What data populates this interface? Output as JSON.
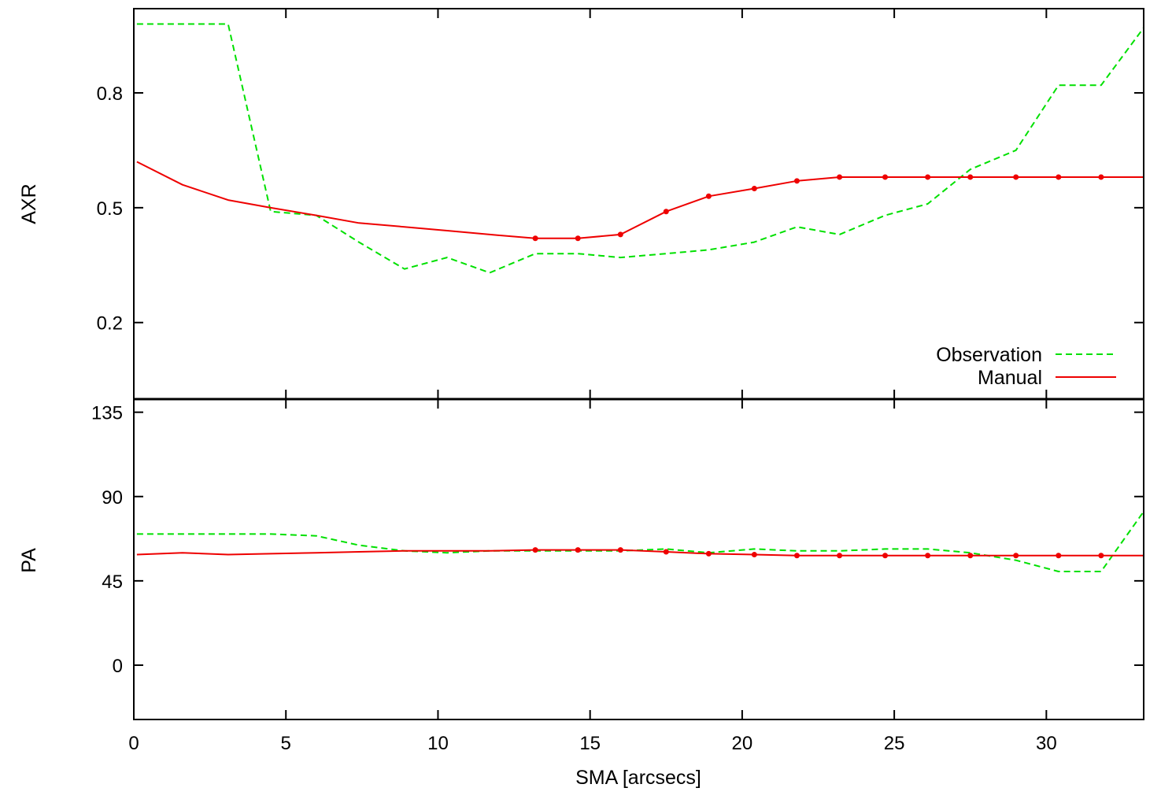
{
  "chart_data": [
    {
      "type": "line",
      "panel": "top",
      "ylabel": "AXR",
      "xlabel": "",
      "xlim": [
        0,
        33.2
      ],
      "ylim": [
        0,
        1.02
      ],
      "yticks": [
        "0.2",
        "0.5",
        "0.8"
      ],
      "ytick_values": [
        0.2,
        0.5,
        0.8
      ],
      "grid": false,
      "legend_position": "bottom-right",
      "series": [
        {
          "name": "Observation",
          "color": "#00e000",
          "style": "dashed",
          "x": [
            0.1,
            3.1,
            4.5,
            6.0,
            7.4,
            8.9,
            10.3,
            11.7,
            13.2,
            14.6,
            16.0,
            17.5,
            18.9,
            20.4,
            21.8,
            23.2,
            24.7,
            26.1,
            27.5,
            29.0,
            30.4,
            31.8,
            33.2
          ],
          "y": [
            0.98,
            0.98,
            0.49,
            0.48,
            0.41,
            0.34,
            0.37,
            0.33,
            0.38,
            0.38,
            0.37,
            0.38,
            0.39,
            0.41,
            0.45,
            0.43,
            0.48,
            0.51,
            0.6,
            0.65,
            0.82,
            0.82,
            0.97
          ]
        },
        {
          "name": "Manual",
          "color": "#ee0000",
          "style": "solid",
          "x": [
            0.1,
            1.6,
            3.1,
            4.5,
            6.0,
            7.4,
            8.9,
            10.3,
            11.7,
            13.2,
            14.6,
            16.0,
            17.5,
            18.9,
            20.4,
            21.8,
            23.2,
            24.7,
            26.1,
            27.5,
            29.0,
            30.4,
            31.8,
            33.2
          ],
          "y": [
            0.62,
            0.56,
            0.52,
            0.5,
            0.48,
            0.46,
            0.45,
            0.44,
            0.43,
            0.42,
            0.42,
            0.43,
            0.49,
            0.53,
            0.55,
            0.57,
            0.58,
            0.58,
            0.58,
            0.58,
            0.58,
            0.58,
            0.58,
            0.58
          ],
          "markers_from_index": 9
        }
      ]
    },
    {
      "type": "line",
      "panel": "bottom",
      "ylabel": "PA",
      "xlabel": "SMA [arcsecs]",
      "xlim": [
        0,
        33.2
      ],
      "ylim": [
        -29,
        142
      ],
      "xticks": [
        "0",
        "5",
        "10",
        "15",
        "20",
        "25",
        "30"
      ],
      "xtick_values": [
        0,
        5,
        10,
        15,
        20,
        25,
        30
      ],
      "yticks": [
        "0",
        "45",
        "90",
        "135"
      ],
      "ytick_values": [
        0,
        45,
        90,
        135
      ],
      "grid": false,
      "series": [
        {
          "name": "Observation",
          "color": "#00e000",
          "style": "dashed",
          "x": [
            0.1,
            1.6,
            3.1,
            4.5,
            6.0,
            7.4,
            8.9,
            10.3,
            11.7,
            13.2,
            14.6,
            16.0,
            17.5,
            18.9,
            20.4,
            21.8,
            23.2,
            24.7,
            26.1,
            27.5,
            29.0,
            30.4,
            31.8,
            33.2
          ],
          "y": [
            70,
            70,
            70,
            70,
            69,
            64,
            61,
            60,
            61,
            61,
            61,
            61,
            62,
            60,
            62,
            61,
            61,
            62,
            62,
            60,
            56,
            50,
            50,
            82
          ]
        },
        {
          "name": "Manual",
          "color": "#ee0000",
          "style": "solid",
          "x": [
            0.1,
            1.6,
            3.1,
            4.5,
            6.0,
            7.4,
            8.9,
            10.3,
            11.7,
            13.2,
            14.6,
            16.0,
            17.5,
            18.9,
            20.4,
            21.8,
            23.2,
            24.7,
            26.1,
            27.5,
            29.0,
            30.4,
            31.8,
            33.2
          ],
          "y": [
            59,
            60,
            59,
            59.5,
            60,
            60.5,
            61,
            61,
            61,
            61.5,
            61.5,
            61.5,
            60.5,
            59.5,
            59,
            58.5,
            58.5,
            58.5,
            58.5,
            58.5,
            58.5,
            58.5,
            58.5,
            58.5
          ],
          "markers_from_index": 9
        }
      ]
    }
  ]
}
